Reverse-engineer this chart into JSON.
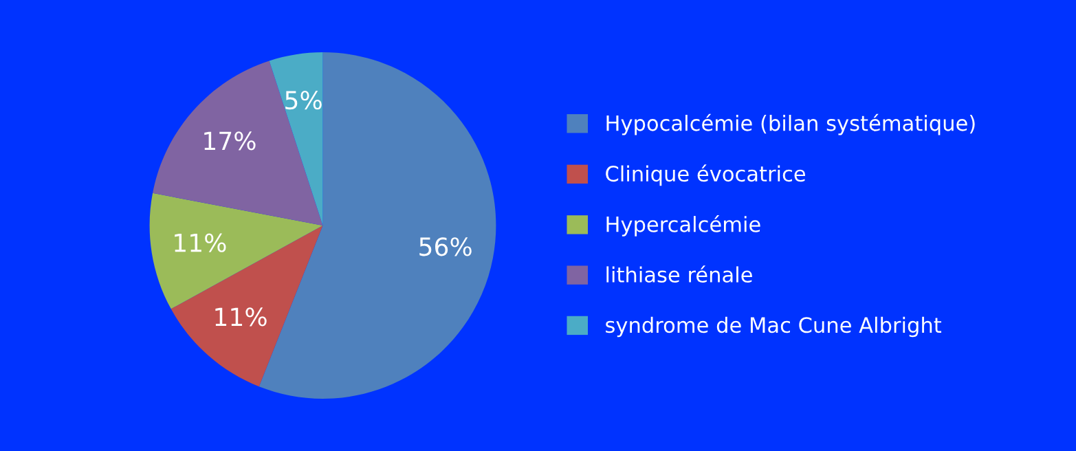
{
  "chart_data": {
    "type": "pie",
    "categories": [
      "Hypocalcémie (bilan systématique)",
      "Clinique évocatrice",
      "Hypercalcémie",
      "lithiase rénale",
      "syndrome de Mac Cune Albright"
    ],
    "values": [
      56,
      11,
      11,
      17,
      5
    ],
    "colors": [
      "#4f81bd",
      "#c0504d",
      "#9bbb59",
      "#8064a2",
      "#4bacc6"
    ],
    "value_labels": [
      "56%",
      "11%",
      "11%",
      "17%",
      "5%"
    ],
    "legend": "right"
  }
}
